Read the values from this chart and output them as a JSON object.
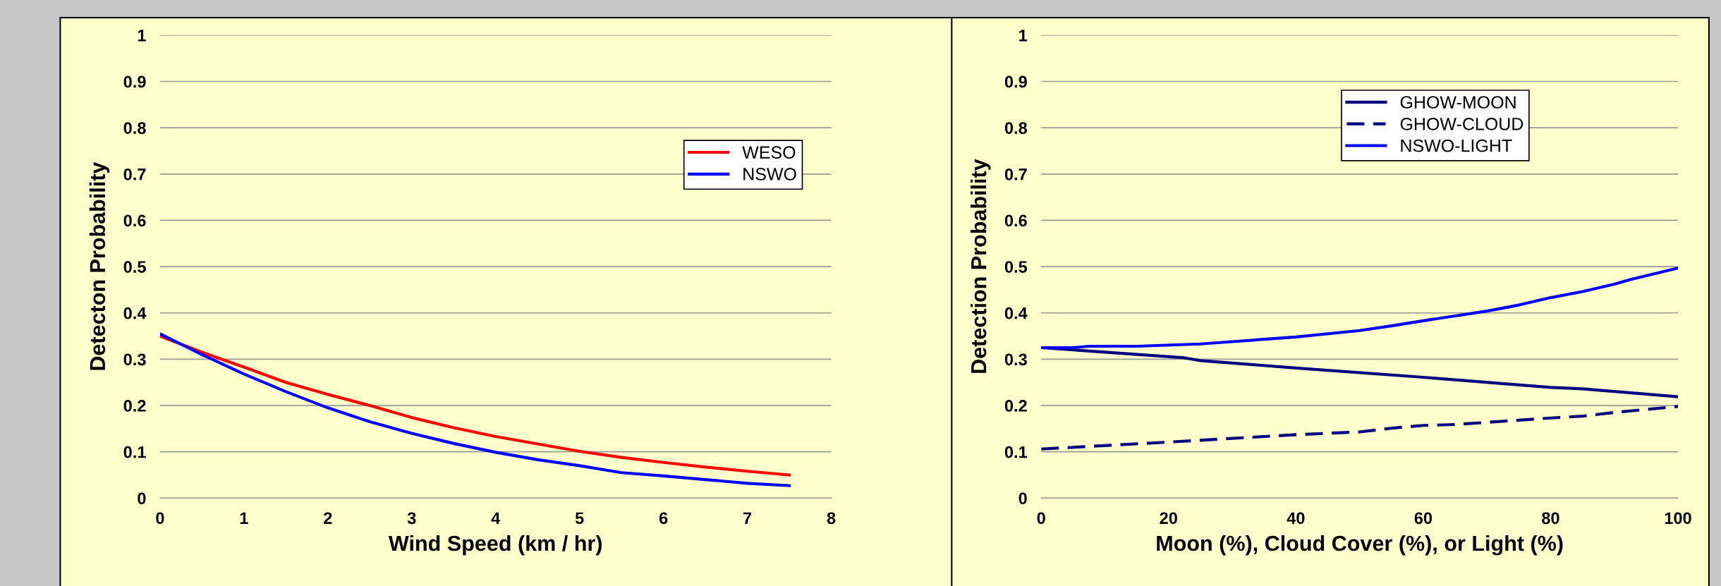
{
  "chart_data": [
    {
      "type": "line",
      "xlabel": "Wind Speed (km / hr)",
      "ylabel": "Detecton Probability",
      "xlim": [
        0,
        8
      ],
      "xticks": [
        0,
        1,
        2,
        3,
        4,
        5,
        6,
        7,
        8
      ],
      "ylim": [
        0,
        1
      ],
      "yticks": [
        0,
        0.1,
        0.2,
        0.3,
        0.4,
        0.5,
        0.6,
        0.7,
        0.8,
        0.9,
        1
      ],
      "grid": "y",
      "legend": "right",
      "series": [
        {
          "name": "WESO",
          "color": "#ff0000",
          "line_style": "solid",
          "x": [
            0,
            0.5,
            1,
            1.5,
            2,
            2.5,
            3,
            3.5,
            4,
            4.5,
            5,
            5.5,
            6,
            6.5,
            7,
            7.5
          ],
          "values": [
            0.35,
            0.315,
            0.283,
            0.25,
            0.224,
            0.2,
            0.174,
            0.152,
            0.133,
            0.117,
            0.101,
            0.088,
            0.077,
            0.067,
            0.058,
            0.05
          ]
        },
        {
          "name": "NSWO",
          "color": "#0000ff",
          "line_style": "solid",
          "x": [
            0,
            0.5,
            1,
            1.5,
            2,
            2.5,
            3,
            3.5,
            4,
            4.5,
            5,
            5.5,
            6,
            6.5,
            7,
            7.5
          ],
          "values": [
            0.355,
            0.31,
            0.268,
            0.23,
            0.195,
            0.165,
            0.14,
            0.118,
            0.099,
            0.083,
            0.07,
            0.055,
            0.048,
            0.04,
            0.032,
            0.027
          ]
        }
      ]
    },
    {
      "type": "line",
      "xlabel": "Moon (%), Cloud Cover (%), or Light (%)",
      "ylabel": "Detection Probability",
      "xlim": [
        0,
        100
      ],
      "xticks": [
        0,
        20,
        40,
        60,
        80,
        100
      ],
      "ylim": [
        0,
        1
      ],
      "yticks": [
        0,
        0.1,
        0.2,
        0.3,
        0.4,
        0.5,
        0.6,
        0.7,
        0.8,
        0.9,
        1
      ],
      "grid": "y",
      "legend": "top right",
      "series": [
        {
          "name": "GHOW-MOON",
          "color": "#000080",
          "line_style": "solid",
          "x": [
            0,
            22.5,
            25,
            40,
            60,
            80,
            85,
            100
          ],
          "values": [
            0.325,
            0.303,
            0.297,
            0.281,
            0.261,
            0.239,
            0.236,
            0.219
          ]
        },
        {
          "name": "GHOW-CLOUD",
          "color": "#000080",
          "line_style": "dashed",
          "x": [
            0,
            20,
            40,
            50,
            55,
            60,
            65,
            80,
            85,
            90,
            100
          ],
          "values": [
            0.106,
            0.121,
            0.137,
            0.143,
            0.151,
            0.157,
            0.159,
            0.173,
            0.177,
            0.185,
            0.198
          ]
        },
        {
          "name": "NSWO-LIGHT",
          "color": "#0000ff",
          "line_style": "solid",
          "x": [
            0,
            5,
            7.5,
            15,
            25,
            30,
            40,
            50,
            55,
            60,
            70,
            75,
            80,
            85,
            90,
            92.5,
            100
          ],
          "values": [
            0.325,
            0.325,
            0.328,
            0.328,
            0.333,
            0.338,
            0.348,
            0.362,
            0.372,
            0.383,
            0.404,
            0.417,
            0.433,
            0.446,
            0.462,
            0.472,
            0.497
          ]
        }
      ]
    }
  ]
}
